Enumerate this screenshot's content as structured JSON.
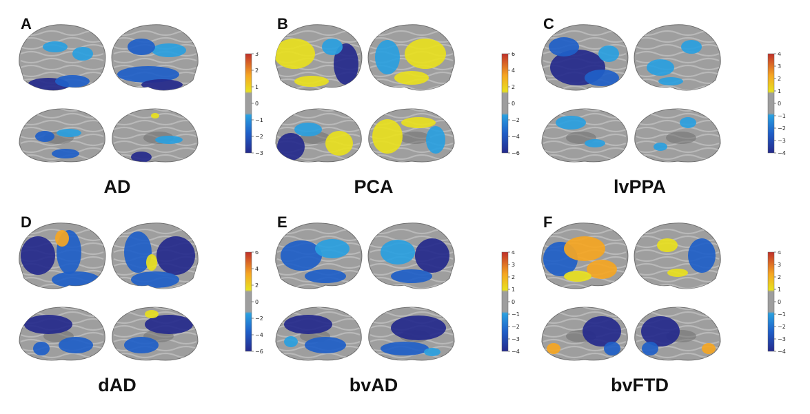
{
  "panels": [
    {
      "letter": "A",
      "title": "AD",
      "scale": {
        "min": -3,
        "max": 3,
        "ticks": [
          "3",
          "2",
          "1",
          "0",
          "−1",
          "−2",
          "−3"
        ]
      }
    },
    {
      "letter": "B",
      "title": "PCA",
      "scale": {
        "min": -6,
        "max": 6,
        "ticks": [
          "6",
          "4",
          "2",
          "0",
          "−2",
          "−4",
          "−6"
        ]
      }
    },
    {
      "letter": "C",
      "title": "lvPPA",
      "scale": {
        "min": -4,
        "max": 4,
        "ticks": [
          "4",
          "3",
          "2",
          "1",
          "0",
          "−1",
          "−2",
          "−3",
          "−4"
        ]
      }
    },
    {
      "letter": "D",
      "title": "dAD",
      "scale": {
        "min": -6,
        "max": 6,
        "ticks": [
          "6",
          "4",
          "2",
          "0",
          "−2",
          "−4",
          "−6"
        ]
      }
    },
    {
      "letter": "E",
      "title": "bvAD",
      "scale": {
        "min": -4,
        "max": 4,
        "ticks": [
          "4",
          "3",
          "2",
          "1",
          "0",
          "−1",
          "−2",
          "−3",
          "−4"
        ]
      }
    },
    {
      "letter": "F",
      "title": "bvFTD",
      "scale": {
        "min": -4,
        "max": 4,
        "ticks": [
          "4",
          "3",
          "2",
          "1",
          "0",
          "−1",
          "−2",
          "−3",
          "−4"
        ]
      }
    }
  ],
  "colors": {
    "cortex": "#9e9e9e",
    "cortex_dark": "#6f6f6f",
    "cortex_light": "#c4c4c4",
    "neg_strong": "#252a8c",
    "neg_mid": "#1f5fc8",
    "neg_light": "#2aa0e0",
    "pos_light": "#e8e020",
    "pos_mid": "#f5a623",
    "pos_strong": "#c0302a"
  }
}
